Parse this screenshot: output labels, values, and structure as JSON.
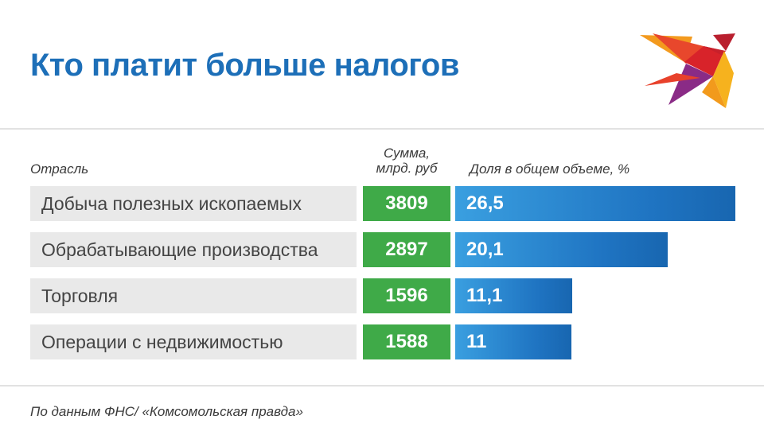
{
  "header": {
    "title": "Кто платит больше налогов"
  },
  "logo": {
    "icon": "swallow-bird-logo-icon",
    "colors": [
      "#f29a1c",
      "#e8412b",
      "#8a2b86",
      "#d8232a"
    ]
  },
  "chart_data": {
    "type": "bar",
    "orientation": "horizontal",
    "title": "Кто платит больше налогов",
    "columns": {
      "industry": "Отрасль",
      "sum_line1": "Сумма,",
      "sum_line2": "млрд. руб",
      "share": "Доля в общем объеме, %"
    },
    "categories": [
      "Добыча полезных ископаемых",
      "Обрабатывающие производства",
      "Торговля",
      "Операции с недвижимостью"
    ],
    "sums": [
      "3809",
      "2897",
      "1596",
      "1588"
    ],
    "series": [
      {
        "values": [
          26.5,
          20.1,
          11.1,
          11
        ],
        "labels": [
          "26,5",
          "20,1",
          "11,1",
          "11"
        ]
      }
    ],
    "xlim": [
      0,
      26.5
    ],
    "colors": {
      "bar": "#1f74c2",
      "sum": "#3faa48",
      "label_bg": "#e9e9e9",
      "title": "#1d6fb8"
    }
  },
  "footer": {
    "source": "По данным ФНС/ «Комсомольская правда»"
  }
}
